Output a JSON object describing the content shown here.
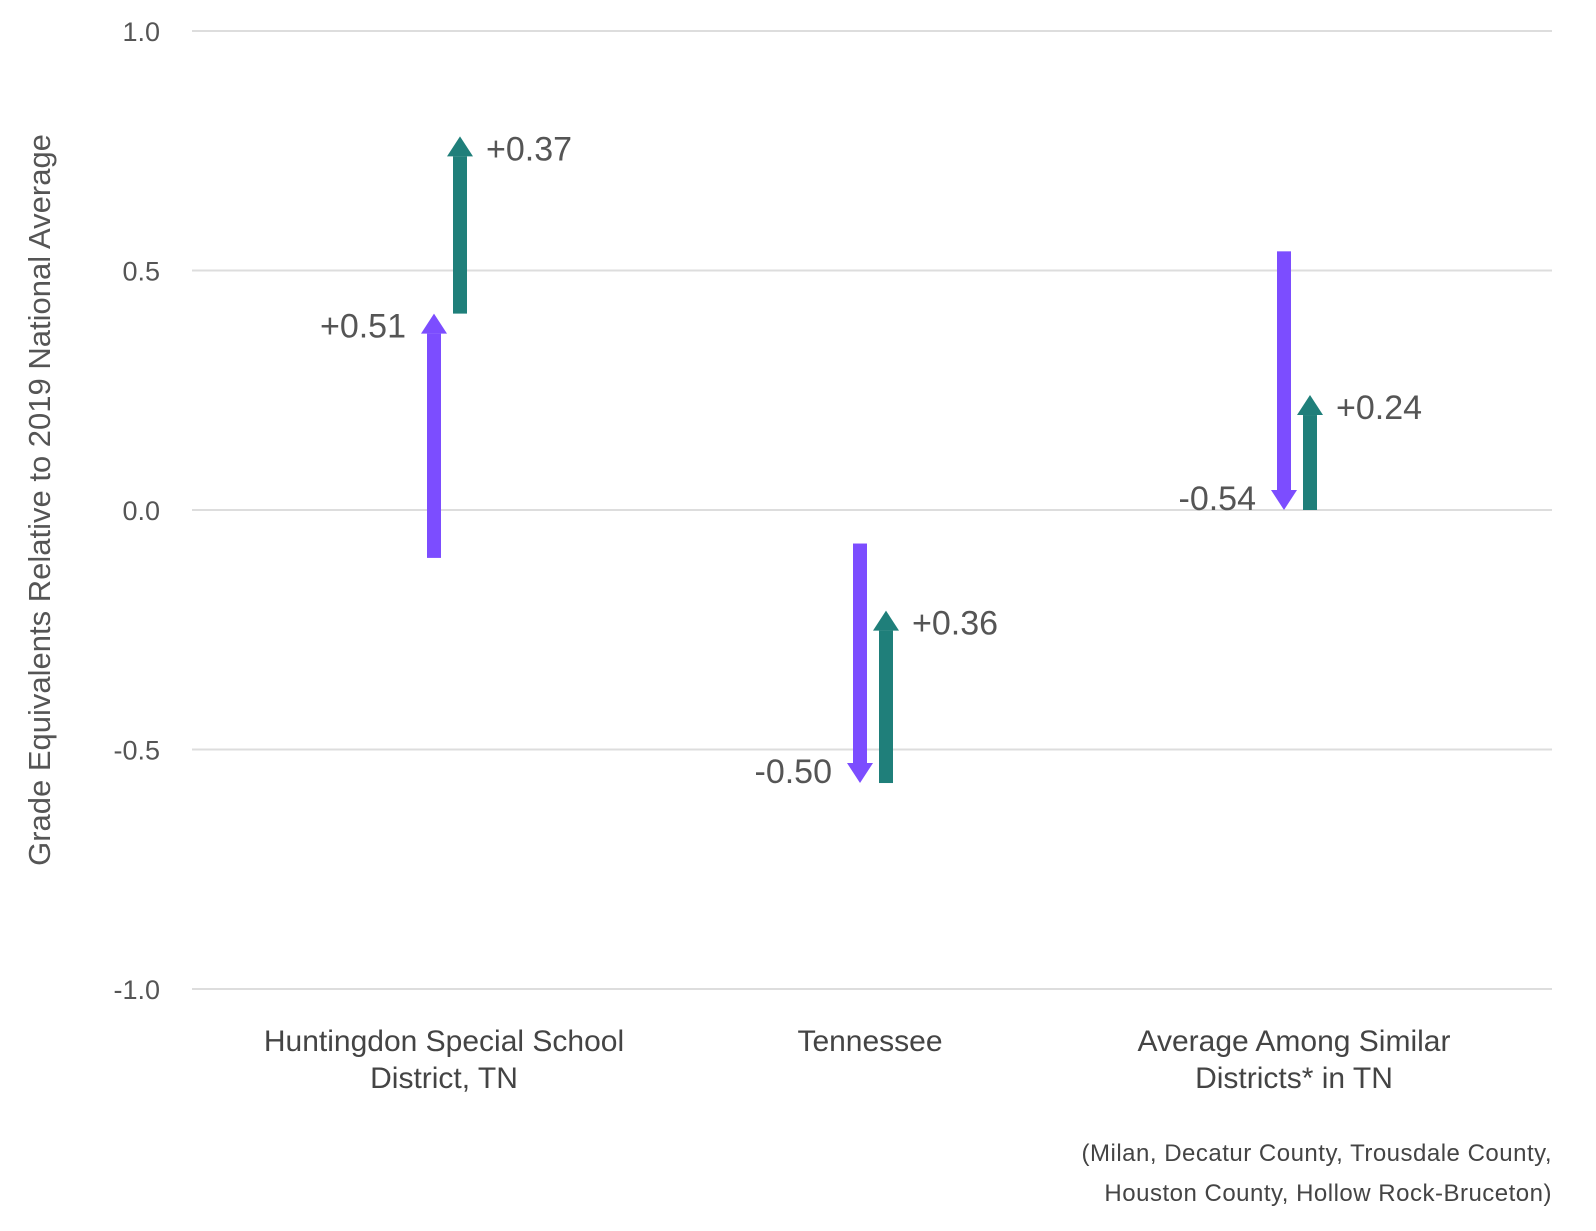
{
  "chart_data": {
    "type": "arrow",
    "ylabel": "Grade Equivalents Relative to 2019 National Average",
    "ylim": [
      -1.0,
      1.0
    ],
    "yticks": [
      1.0,
      0.5,
      0.0,
      -0.5,
      -1.0
    ],
    "ytick_labels": [
      "1.0",
      "0.5",
      "0.0",
      "-0.5",
      "-1.0"
    ],
    "categories": [
      [
        "Huntingdon Special School",
        "District, TN"
      ],
      [
        "Tennessee"
      ],
      [
        "Average Among Similar",
        "Districts* in TN"
      ]
    ],
    "series": [
      {
        "color": "#7c4dff",
        "start": [
          -0.1,
          -0.07,
          0.54
        ],
        "end": [
          0.41,
          -0.57,
          0.0
        ],
        "labels": [
          "+0.51",
          "-0.50",
          "-0.54"
        ]
      },
      {
        "color": "#1f7f7a",
        "start": [
          0.41,
          -0.57,
          0.0
        ],
        "end": [
          0.78,
          -0.21,
          0.24
        ],
        "labels": [
          "+0.37",
          "+0.36",
          "+0.24"
        ]
      }
    ],
    "footnote": [
      "(Milan, Decatur County, Trousdale County,",
      "Houston County, Hollow Rock-Bruceton)"
    ],
    "grid": true
  }
}
